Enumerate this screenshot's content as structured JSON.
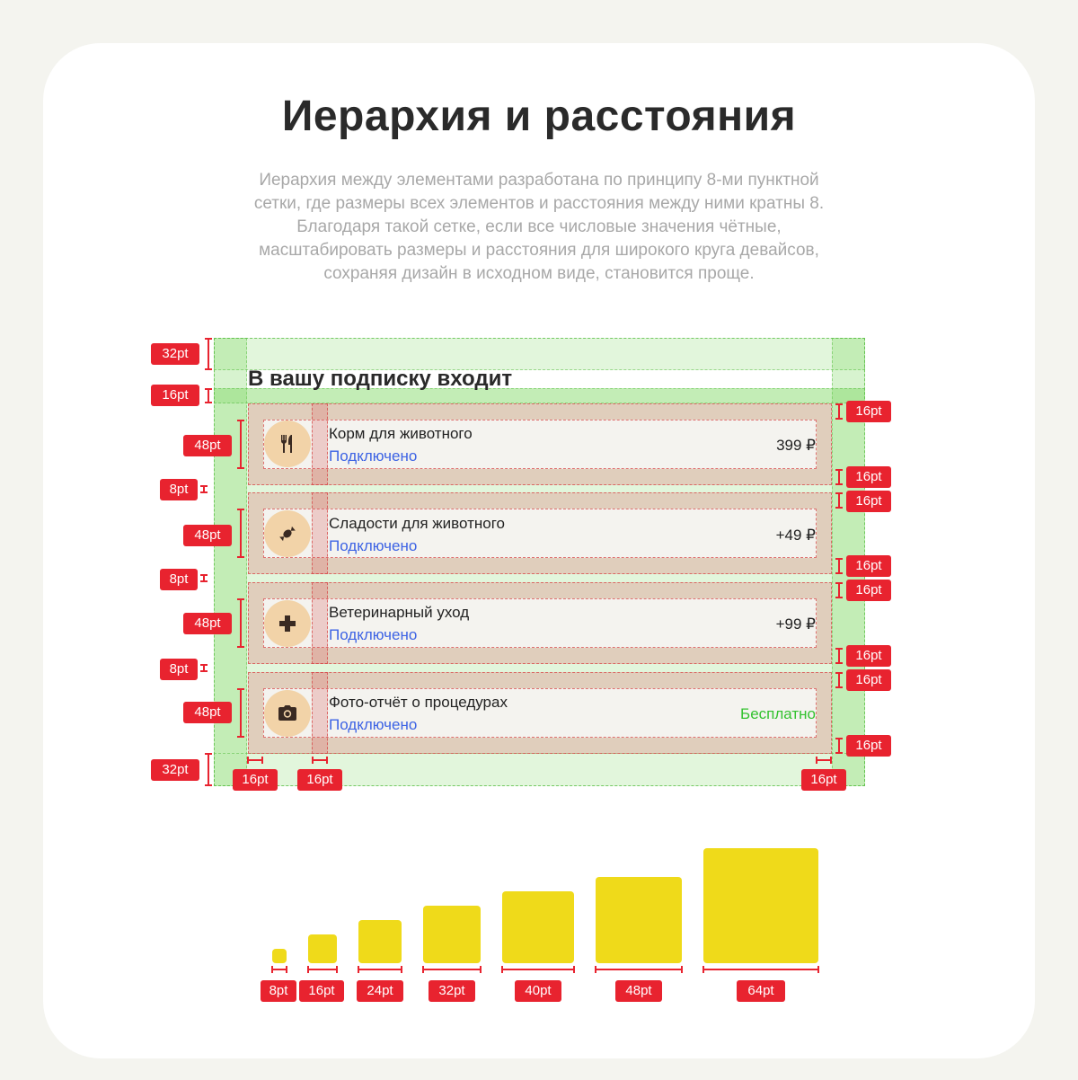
{
  "header": {
    "title": "Иерархия и расстояния",
    "description_lines": [
      "Иерархия между элементами разработана по принципу 8-ми пунктной",
      "сетки, где размеры всех элементов и расстояния между ними кратны 8.",
      "Благодаря такой сетке, если все числовые значения чётные,",
      "масштабировать размеры и расстояния для широкого круга девайсов,",
      "сохраняя дизайн в исходном виде, становится проще."
    ]
  },
  "subscription": {
    "title": "В вашу подписку входит",
    "items": [
      {
        "title": "Корм для животного",
        "status": "Подключено",
        "price": "399 ₽",
        "icon": "fork-knife-icon"
      },
      {
        "title": "Сладости для животного",
        "status": "Подключено",
        "price": "+49 ₽",
        "icon": "candy-icon"
      },
      {
        "title": "Ветеринарный уход",
        "status": "Подключено",
        "price": "+99 ₽",
        "icon": "medical-cross-icon"
      },
      {
        "title": "Фото-отчёт о процедурах",
        "status": "Подключено",
        "price": "Бесплатно",
        "icon": "camera-icon"
      }
    ]
  },
  "spacing_labels": {
    "left": [
      "32pt",
      "16pt",
      "48pt",
      "8pt",
      "48pt",
      "8pt",
      "48pt",
      "8pt",
      "48pt",
      "32pt"
    ],
    "right": [
      "16pt",
      "16pt",
      "16pt",
      "16pt",
      "16pt",
      "16pt",
      "16pt",
      "16pt"
    ],
    "bottom": [
      "16pt",
      "16pt",
      "16pt"
    ]
  },
  "size_scale": [
    {
      "label": "8pt",
      "value": 8
    },
    {
      "label": "16pt",
      "value": 16
    },
    {
      "label": "24pt",
      "value": 24
    },
    {
      "label": "32pt",
      "value": 32
    },
    {
      "label": "40pt",
      "value": 40
    },
    {
      "label": "48pt",
      "value": 48
    },
    {
      "label": "64pt",
      "value": 64
    }
  ],
  "colors": {
    "accent_red": "#e8232f",
    "status_blue": "#3d63e4",
    "free_green": "#33c22f",
    "icon_bg": "#f2d3a8",
    "square_yellow": "#efda1a"
  }
}
